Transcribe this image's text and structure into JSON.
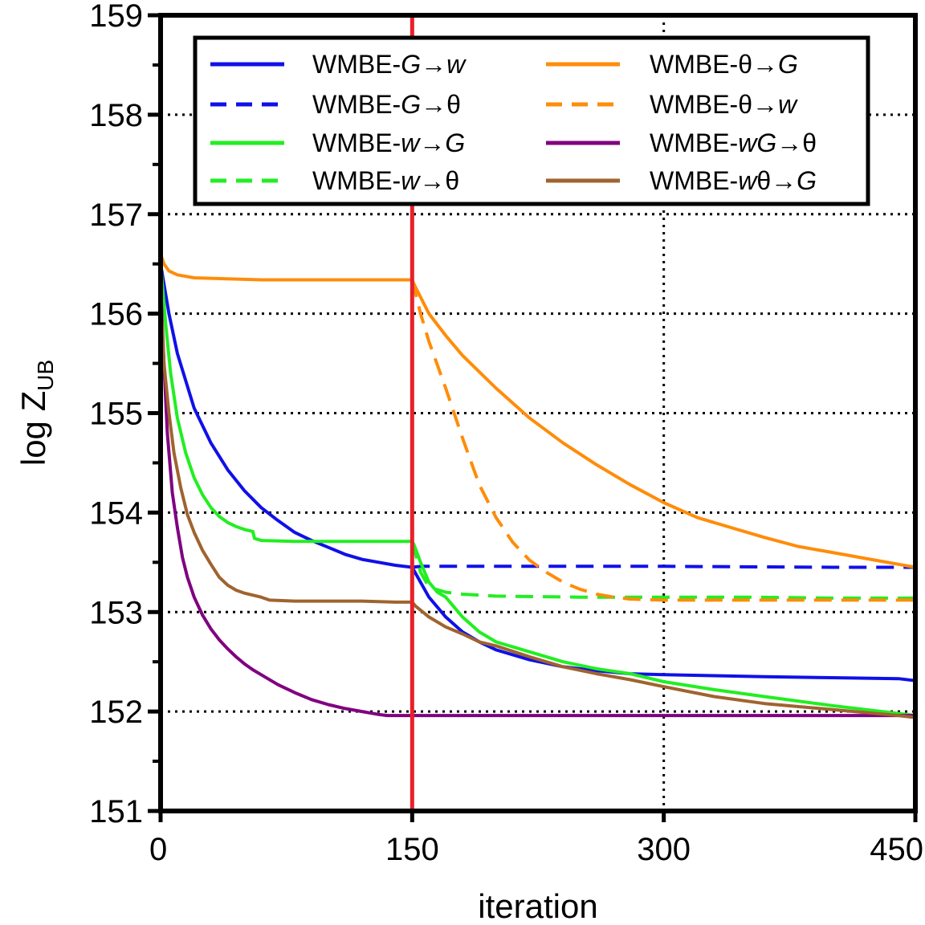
{
  "chart_data": {
    "type": "line",
    "xlabel": "iteration",
    "ylabel_main": "log Z",
    "ylabel_sub": "UB",
    "xlim": [
      0,
      450
    ],
    "ylim": [
      151,
      159
    ],
    "xticks": [
      0,
      150,
      300,
      450
    ],
    "xtick_labels": [
      "0",
      "150",
      "300",
      "450"
    ],
    "yticks": [
      151,
      152,
      153,
      154,
      155,
      156,
      157,
      158,
      159
    ],
    "ytick_labels": [
      "151",
      "152",
      "153",
      "154",
      "155",
      "156",
      "157",
      "158",
      "159"
    ],
    "grid_y": [
      152,
      153,
      154,
      155,
      156,
      157,
      158
    ],
    "grid_x": [
      300
    ],
    "vline": {
      "x": 150,
      "color": "#e8202a"
    },
    "legend_position": "top",
    "series": [
      {
        "id": "g-w",
        "name": "WMBE-G→w",
        "label_parts": [
          {
            "t": "WMBE-",
            "i": false
          },
          {
            "t": "G",
            "i": true
          },
          {
            "t": "→",
            "i": false
          },
          {
            "t": "w",
            "i": true
          }
        ],
        "color": "#1010e8",
        "dashed": false,
        "x": [
          0,
          5,
          10,
          20,
          30,
          40,
          50,
          60,
          70,
          80,
          90,
          100,
          110,
          120,
          130,
          140,
          150,
          160,
          170,
          180,
          190,
          200,
          220,
          240,
          260,
          280,
          300,
          330,
          360,
          400,
          440,
          450
        ],
        "y": [
          156.5,
          156.0,
          155.6,
          155.05,
          154.7,
          154.43,
          154.22,
          154.05,
          153.92,
          153.8,
          153.72,
          153.65,
          153.58,
          153.53,
          153.5,
          153.47,
          153.45,
          153.15,
          152.95,
          152.8,
          152.7,
          152.62,
          152.52,
          152.45,
          152.41,
          152.38,
          152.37,
          152.36,
          152.35,
          152.34,
          152.33,
          152.31
        ]
      },
      {
        "id": "g-theta",
        "name": "WMBE-G→θ",
        "label_parts": [
          {
            "t": "WMBE-",
            "i": false
          },
          {
            "t": "G",
            "i": true
          },
          {
            "t": "→θ",
            "i": false
          }
        ],
        "color": "#1010e8",
        "dashed": true,
        "x": [
          150,
          155,
          160,
          200,
          300,
          400,
          450
        ],
        "y": [
          153.45,
          153.46,
          153.46,
          153.46,
          153.46,
          153.45,
          153.45
        ]
      },
      {
        "id": "w-g",
        "name": "WMBE-w→G",
        "label_parts": [
          {
            "t": "WMBE-",
            "i": false
          },
          {
            "t": "w",
            "i": true
          },
          {
            "t": "→",
            "i": false
          },
          {
            "t": "G",
            "i": true
          }
        ],
        "color": "#22ee22",
        "dashed": false,
        "x": [
          0,
          3,
          6,
          10,
          15,
          20,
          25,
          30,
          35,
          40,
          45,
          50,
          55,
          56,
          60,
          80,
          100,
          120,
          140,
          150,
          151,
          155,
          160,
          165,
          170,
          180,
          190,
          200,
          220,
          240,
          260,
          280,
          300,
          330,
          360,
          400,
          440,
          450
        ],
        "y": [
          156.5,
          155.9,
          155.4,
          154.95,
          154.6,
          154.35,
          154.18,
          154.05,
          153.96,
          153.9,
          153.86,
          153.83,
          153.81,
          153.74,
          153.72,
          153.71,
          153.71,
          153.71,
          153.71,
          153.71,
          153.68,
          153.5,
          153.3,
          153.2,
          153.15,
          152.95,
          152.8,
          152.7,
          152.6,
          152.5,
          152.43,
          152.38,
          152.3,
          152.22,
          152.15,
          152.06,
          151.98,
          151.96
        ]
      },
      {
        "id": "w-theta",
        "name": "WMBE-w→θ",
        "label_parts": [
          {
            "t": "WMBE-",
            "i": false
          },
          {
            "t": "w",
            "i": true
          },
          {
            "t": "→θ",
            "i": false
          }
        ],
        "color": "#22ee22",
        "dashed": true,
        "x": [
          150,
          155,
          160,
          170,
          180,
          200,
          250,
          300,
          350,
          400,
          450
        ],
        "y": [
          153.71,
          153.4,
          153.25,
          153.2,
          153.18,
          153.16,
          153.15,
          153.15,
          153.15,
          153.14,
          153.14
        ]
      },
      {
        "id": "theta-g",
        "name": "WMBE-θ→G",
        "label_parts": [
          {
            "t": "WMBE-θ→",
            "i": false
          },
          {
            "t": "G",
            "i": true
          }
        ],
        "color": "#ff8c0a",
        "dashed": false,
        "x": [
          0,
          2,
          5,
          10,
          20,
          40,
          60,
          80,
          100,
          120,
          140,
          150,
          151,
          160,
          170,
          180,
          200,
          220,
          240,
          260,
          280,
          300,
          320,
          340,
          360,
          380,
          400,
          420,
          440,
          450
        ],
        "y": [
          156.6,
          156.5,
          156.43,
          156.39,
          156.36,
          156.35,
          156.34,
          156.34,
          156.34,
          156.34,
          156.34,
          156.34,
          156.3,
          156.0,
          155.78,
          155.58,
          155.25,
          154.95,
          154.7,
          154.48,
          154.28,
          154.1,
          153.95,
          153.85,
          153.75,
          153.66,
          153.6,
          153.54,
          153.48,
          153.45
        ]
      },
      {
        "id": "theta-w",
        "name": "WMBE-θ→w",
        "label_parts": [
          {
            "t": "WMBE-θ→",
            "i": false
          },
          {
            "t": "w",
            "i": true
          }
        ],
        "color": "#ff8c0a",
        "dashed": true,
        "x": [
          150,
          155,
          160,
          170,
          180,
          190,
          200,
          210,
          220,
          230,
          240,
          250,
          260,
          270,
          280,
          300,
          350,
          400,
          450
        ],
        "y": [
          156.34,
          156.0,
          155.72,
          155.25,
          154.75,
          154.28,
          153.95,
          153.7,
          153.52,
          153.4,
          153.3,
          153.23,
          153.18,
          153.15,
          153.13,
          153.12,
          153.12,
          153.12,
          153.12
        ]
      },
      {
        "id": "wg-theta",
        "name": "WMBE-wG→θ",
        "label_parts": [
          {
            "t": "WMBE-",
            "i": false
          },
          {
            "t": "wG",
            "i": true
          },
          {
            "t": "→θ",
            "i": false
          }
        ],
        "color": "#800080",
        "dashed": false,
        "x": [
          0,
          2,
          4,
          7,
          10,
          13,
          16,
          20,
          25,
          30,
          35,
          40,
          45,
          50,
          55,
          60,
          70,
          80,
          90,
          100,
          110,
          120,
          130,
          135,
          150,
          200,
          300,
          400,
          450
        ],
        "y": [
          156.3,
          155.5,
          154.8,
          154.2,
          153.85,
          153.55,
          153.35,
          153.15,
          152.97,
          152.83,
          152.72,
          152.63,
          152.55,
          152.48,
          152.42,
          152.37,
          152.27,
          152.19,
          152.12,
          152.07,
          152.03,
          152.0,
          151.97,
          151.96,
          151.96,
          151.96,
          151.96,
          151.96,
          151.96
        ]
      },
      {
        "id": "wtheta-g",
        "name": "WMBE-wθ→G",
        "label_parts": [
          {
            "t": "WMBE-",
            "i": false
          },
          {
            "t": "w",
            "i": true
          },
          {
            "t": "θ→",
            "i": false
          },
          {
            "t": "G",
            "i": true
          }
        ],
        "color": "#a0632e",
        "dashed": false,
        "x": [
          0,
          2,
          5,
          8,
          12,
          16,
          20,
          25,
          30,
          35,
          40,
          45,
          50,
          55,
          60,
          65,
          80,
          100,
          120,
          140,
          150,
          152,
          160,
          170,
          180,
          190,
          200,
          220,
          240,
          260,
          280,
          300,
          330,
          360,
          400,
          440,
          450
        ],
        "y": [
          156.2,
          155.5,
          155.0,
          154.6,
          154.25,
          153.98,
          153.8,
          153.62,
          153.48,
          153.35,
          153.27,
          153.22,
          153.19,
          153.17,
          153.15,
          153.12,
          153.11,
          153.11,
          153.11,
          153.1,
          153.1,
          153.06,
          152.95,
          152.85,
          152.78,
          152.7,
          152.66,
          152.55,
          152.45,
          152.38,
          152.32,
          152.25,
          152.15,
          152.08,
          152.02,
          151.96,
          151.94
        ]
      }
    ]
  }
}
